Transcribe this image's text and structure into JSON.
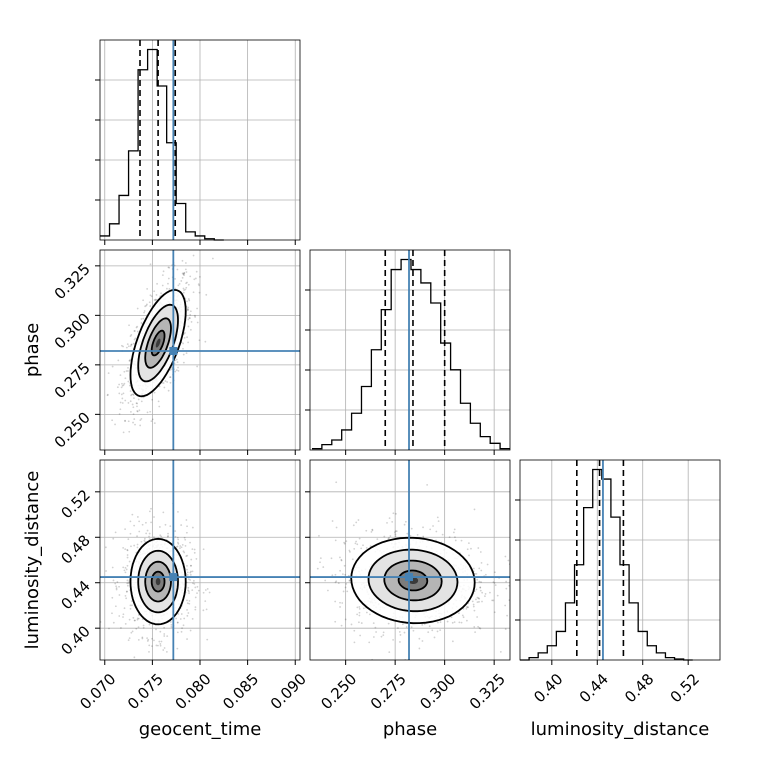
{
  "chart_data": {
    "type": "corner",
    "parameters": [
      "geocent_time",
      "phase",
      "luminosity_distance"
    ],
    "truths": [
      0.0772,
      0.282,
      0.445
    ],
    "truth_color": "#4682b4",
    "quantiles": {
      "geocent_time": [
        0.0737,
        0.0756,
        0.0774
      ],
      "phase": [
        0.27,
        0.284,
        0.3
      ],
      "luminosity_distance": [
        0.422,
        0.442,
        0.463
      ]
    },
    "ranges": {
      "geocent_time": [
        0.0695,
        0.0905
      ],
      "phase": [
        0.232,
        0.333
      ],
      "luminosity_distance": [
        0.372,
        0.548
      ]
    },
    "ticks": {
      "geocent_time": [
        "0.070",
        "0.075",
        "0.080",
        "0.085",
        "0.090"
      ],
      "phase": [
        "0.250",
        "0.275",
        "0.300",
        "0.325"
      ],
      "luminosity_distance": [
        "0.40",
        "0.44",
        "0.48",
        "0.52"
      ]
    },
    "histograms": {
      "geocent_time": {
        "edges": [
          0.0695,
          0.0705,
          0.0715,
          0.0725,
          0.0735,
          0.0745,
          0.0755,
          0.0765,
          0.0775,
          0.0785,
          0.0795,
          0.0805,
          0.0815,
          0.0825
        ],
        "counts": [
          1,
          4,
          11,
          22,
          42,
          47,
          38,
          24,
          9,
          2,
          1,
          0.3,
          0
        ]
      },
      "phase": {
        "edges": [
          0.233,
          0.238,
          0.243,
          0.248,
          0.253,
          0.258,
          0.263,
          0.268,
          0.273,
          0.278,
          0.283,
          0.288,
          0.293,
          0.298,
          0.303,
          0.308,
          0.313,
          0.318,
          0.323,
          0.328,
          0.333
        ],
        "counts": [
          0.2,
          0.8,
          1.5,
          3,
          5.5,
          9.5,
          15,
          21,
          27,
          28.5,
          27,
          25,
          22,
          16,
          12,
          7,
          4,
          2,
          1,
          0.2
        ]
      },
      "luminosity_distance": {
        "edges": [
          0.372,
          0.38,
          0.388,
          0.396,
          0.404,
          0.412,
          0.42,
          0.428,
          0.436,
          0.444,
          0.452,
          0.46,
          0.468,
          0.476,
          0.484,
          0.492,
          0.5,
          0.508,
          0.516,
          0.524
        ],
        "counts": [
          0,
          0.5,
          1.5,
          3,
          6,
          12,
          20,
          32,
          40,
          38,
          30,
          20,
          12,
          6,
          3,
          1.5,
          0.5,
          0.2,
          0
        ]
      }
    },
    "contour_centers": [
      {
        "x": "geocent_time",
        "y": "phase",
        "cx": 0.0756,
        "cy": 0.286,
        "sx": 0.00135,
        "sy": 0.0125,
        "corr": 0.6
      },
      {
        "x": "geocent_time",
        "y": "luminosity_distance",
        "cx": 0.0756,
        "cy": 0.441,
        "sx": 0.00135,
        "sy": 0.0175,
        "corr": 0.0
      },
      {
        "x": "phase",
        "y": "luminosity_distance",
        "cx": 0.284,
        "cy": 0.442,
        "sx": 0.0145,
        "sy": 0.0175,
        "corr": -0.05
      }
    ],
    "grid": true
  }
}
